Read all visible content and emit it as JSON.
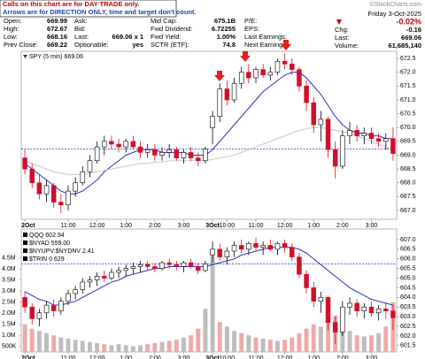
{
  "notice": [
    "Calls on this chart are for DAY TRADE only.",
    "Arrows are for DIRECTION ONLY, time and target don't count."
  ],
  "watermark": "©StockCharts.com",
  "header": {
    "columns": [
      [
        [
          "Open:",
          "669.99"
        ],
        [
          "High:",
          "672.67"
        ],
        [
          "Low:",
          "668.16"
        ],
        [
          "Prev Close:",
          "669.22"
        ]
      ],
      [
        [
          "Ask:"
        ],
        [
          "Bid:"
        ],
        [
          "Last:",
          "669.06 x 1"
        ],
        [
          "Optionable:",
          "yes"
        ]
      ],
      [
        [
          "Mid Cap:",
          "675.1B"
        ],
        [
          "Fwd Dividend:",
          "6.72255"
        ],
        [
          "Fwd Yield:",
          "1.00%"
        ],
        [
          "SCTR (ETF):",
          "74.8"
        ]
      ],
      [
        [
          "P/E:"
        ],
        [
          "EPS:"
        ],
        [
          "Last Earnings:"
        ],
        [
          "Next Earnings:"
        ]
      ]
    ],
    "date": "Friday 3-Oct-2025",
    "pct_change": "-0.02%",
    "right": [
      [
        "Chg:",
        "-0.16"
      ],
      [
        "Last:",
        "669.06"
      ],
      [
        "Volume:",
        "61,685,140"
      ]
    ]
  },
  "chart_data": [
    {
      "type": "candlestick",
      "legend": "SPY (5 min) 669.06",
      "x": [
        0,
        1,
        2,
        3,
        4,
        5,
        6,
        7,
        8,
        9,
        10,
        11,
        12,
        13,
        14,
        15,
        16,
        17,
        18,
        19,
        20,
        21,
        22,
        23,
        24,
        25,
        26,
        27,
        28,
        29,
        30,
        31,
        32,
        33,
        34,
        35,
        36,
        37,
        38,
        39,
        40,
        41,
        42,
        43,
        44,
        45,
        46,
        47,
        48,
        49,
        50,
        51
      ],
      "open": [
        668.9,
        668.5,
        668.0,
        667.6,
        667.9,
        667.3,
        667.2,
        667.7,
        668.0,
        668.4,
        668.8,
        669.3,
        669.5,
        669.4,
        669.3,
        669.5,
        669.3,
        669.1,
        669.2,
        669.0,
        669.1,
        669.2,
        668.9,
        669.1,
        668.9,
        668.8,
        669.99,
        670.4,
        671.4,
        671.0,
        671.6,
        672.0,
        671.8,
        672.1,
        671.9,
        672.0,
        672.4,
        672.3,
        672.1,
        671.5,
        670.9,
        670.1,
        670.3,
        669.2,
        668.6,
        669.7,
        669.9,
        669.7,
        669.8,
        669.6,
        669.5,
        669.6
      ],
      "high": [
        669.2,
        668.7,
        668.3,
        668.1,
        668.0,
        667.6,
        667.9,
        668.2,
        668.6,
        669.0,
        669.5,
        669.7,
        669.7,
        669.6,
        669.6,
        669.7,
        669.5,
        669.4,
        669.4,
        669.3,
        669.4,
        669.3,
        669.2,
        669.3,
        669.1,
        669.3,
        670.6,
        671.6,
        671.7,
        671.8,
        672.2,
        672.3,
        672.2,
        672.3,
        672.2,
        672.5,
        672.67,
        672.5,
        672.2,
        671.7,
        671.1,
        670.6,
        670.4,
        669.5,
        669.9,
        670.2,
        670.1,
        670.0,
        670.0,
        669.8,
        669.8,
        670.0
      ],
      "low": [
        668.3,
        667.8,
        667.4,
        667.3,
        667.1,
        666.9,
        667.0,
        667.5,
        667.9,
        668.2,
        668.7,
        669.0,
        669.2,
        669.1,
        669.1,
        669.2,
        668.9,
        668.9,
        668.8,
        668.8,
        668.9,
        668.8,
        668.7,
        668.8,
        668.6,
        668.7,
        669.4,
        670.2,
        670.8,
        670.9,
        671.4,
        671.6,
        671.6,
        671.8,
        671.7,
        671.9,
        672.1,
        671.9,
        671.3,
        670.6,
        669.8,
        669.5,
        668.9,
        668.16,
        668.5,
        669.4,
        669.5,
        669.4,
        669.4,
        669.3,
        669.2,
        668.8
      ],
      "close": [
        668.5,
        668.0,
        667.6,
        667.9,
        667.3,
        667.2,
        667.7,
        668.0,
        668.4,
        668.8,
        669.3,
        669.5,
        669.4,
        669.3,
        669.5,
        669.3,
        669.1,
        669.2,
        669.0,
        669.1,
        669.2,
        668.9,
        669.1,
        668.9,
        668.8,
        669.22,
        670.4,
        671.4,
        671.0,
        671.6,
        672.0,
        671.8,
        672.1,
        671.9,
        672.0,
        672.4,
        672.3,
        672.1,
        671.5,
        670.9,
        670.1,
        670.3,
        669.2,
        668.6,
        669.7,
        669.9,
        669.7,
        669.8,
        669.6,
        669.5,
        669.6,
        669.06
      ],
      "overlays": [
        {
          "color": "#2b2bd0",
          "values": [
            668.7,
            668.5,
            668.3,
            668.1,
            667.9,
            667.7,
            667.6,
            667.6,
            667.7,
            667.9,
            668.1,
            668.4,
            668.6,
            668.8,
            669.0,
            669.1,
            669.2,
            669.2,
            669.2,
            669.1,
            669.1,
            669.1,
            669.1,
            669.0,
            669.0,
            669.0,
            669.2,
            669.5,
            669.8,
            670.1,
            670.4,
            670.7,
            671.0,
            671.3,
            671.5,
            671.7,
            671.9,
            672.0,
            672.0,
            671.8,
            671.5,
            671.2,
            670.8,
            670.4,
            670.1,
            669.9,
            669.8,
            669.8,
            669.7,
            669.7,
            669.6,
            669.6
          ]
        },
        {
          "color": "#c8c8c8",
          "values": [
            668.8,
            668.7,
            668.6,
            668.5,
            668.4,
            668.35,
            668.3,
            668.3,
            668.3,
            668.35,
            668.4,
            668.45,
            668.5,
            668.55,
            668.6,
            668.65,
            668.7,
            668.7,
            668.75,
            668.75,
            668.8,
            668.8,
            668.8,
            668.8,
            668.8,
            668.8,
            668.85,
            668.9,
            668.95,
            669.0,
            669.1,
            669.2,
            669.3,
            669.4,
            669.5,
            669.6,
            669.7,
            669.8,
            669.9,
            669.95,
            670.0,
            670.0,
            669.95,
            669.9,
            669.85,
            669.8,
            669.7,
            669.6,
            669.5,
            669.4,
            669.3,
            669.2
          ]
        }
      ],
      "reference_line": 669.22,
      "xlim": [
        -0.5,
        51.5
      ],
      "xticks": [
        {
          "value": 0,
          "label": "2Oct"
        },
        {
          "value": 6,
          "label": "11:00"
        },
        {
          "value": 10,
          "label": "12:00"
        },
        {
          "value": 14,
          "label": "1:00"
        },
        {
          "value": 18,
          "label": "2:00"
        },
        {
          "value": 22,
          "label": "3:00"
        },
        {
          "value": 26,
          "label": "3Oct"
        },
        {
          "value": 28,
          "label": "10:00"
        },
        {
          "value": 32,
          "label": "11:00"
        },
        {
          "value": 36,
          "label": "12:00"
        },
        {
          "value": 40,
          "label": "1:00"
        },
        {
          "value": 44,
          "label": "2:00"
        },
        {
          "value": 48,
          "label": "3:00"
        }
      ],
      "ylim": [
        666.68,
        672.76
      ],
      "yticks": [
        {
          "value": 667,
          "label": "667.0"
        },
        667.5,
        {
          "value": 668,
          "label": "668.0"
        },
        668.5,
        {
          "value": 669,
          "label": "669.0"
        },
        669.5,
        {
          "value": 670,
          "label": "670.0"
        },
        670.5,
        {
          "value": 671,
          "label": "671.0"
        },
        671.5,
        {
          "value": 672,
          "label": "672.0"
        },
        672.5
      ]
    },
    {
      "type": "candlestick",
      "legend_lines": [
        "QQQ 602.94",
        "$NYAD 559.00",
        "$NYUPV:$NYDNV 2.41",
        "$TRIN 0.629"
      ],
      "x": [
        0,
        1,
        2,
        3,
        4,
        5,
        6,
        7,
        8,
        9,
        10,
        11,
        12,
        13,
        14,
        15,
        16,
        17,
        18,
        19,
        20,
        21,
        22,
        23,
        24,
        25,
        26,
        27,
        28,
        29,
        30,
        31,
        32,
        33,
        34,
        35,
        36,
        37,
        38,
        39,
        40,
        41,
        42,
        43,
        44,
        45,
        46,
        47,
        48,
        49,
        50,
        51
      ],
      "open": [
        604.0,
        603.5,
        602.9,
        603.2,
        603.6,
        603.3,
        603.8,
        604.2,
        604.4,
        604.8,
        604.9,
        605.1,
        605.0,
        605.3,
        605.4,
        605.5,
        605.6,
        605.7,
        605.6,
        605.5,
        605.8,
        605.7,
        605.6,
        605.8,
        605.6,
        605.4,
        606.2,
        606.5,
        606.1,
        606.4,
        606.7,
        606.5,
        606.8,
        606.6,
        606.7,
        606.5,
        606.8,
        606.6,
        606.1,
        605.2,
        604.5,
        603.8,
        604.0,
        602.7,
        602.2,
        603.5,
        603.7,
        603.3,
        603.5,
        603.2,
        603.4,
        603.3
      ],
      "high": [
        604.3,
        603.7,
        603.4,
        603.8,
        603.9,
        604.0,
        604.4,
        604.6,
        605.0,
        605.1,
        605.3,
        605.4,
        605.5,
        605.6,
        605.7,
        605.8,
        605.9,
        605.9,
        605.8,
        605.9,
        606.0,
        605.9,
        605.9,
        606.0,
        605.8,
        605.9,
        606.9,
        606.8,
        606.6,
        606.9,
        607.0,
        606.9,
        607.1,
        606.9,
        607.0,
        606.9,
        607.0,
        606.8,
        606.3,
        605.4,
        604.8,
        604.3,
        604.1,
        603.0,
        603.8,
        604.0,
        603.9,
        603.7,
        603.8,
        603.6,
        603.7,
        603.6
      ],
      "low": [
        603.2,
        602.6,
        602.5,
        602.9,
        603.0,
        603.1,
        603.6,
        603.9,
        604.2,
        604.5,
        604.6,
        604.8,
        604.9,
        605.0,
        605.1,
        605.2,
        605.3,
        605.4,
        605.3,
        605.4,
        605.5,
        605.4,
        605.3,
        605.5,
        605.2,
        605.3,
        605.8,
        605.9,
        605.7,
        606.1,
        606.3,
        606.2,
        606.4,
        606.2,
        606.4,
        606.2,
        606.3,
        605.9,
        605.0,
        604.2,
        603.5,
        603.2,
        602.3,
        601.6,
        602.0,
        603.1,
        603.0,
        602.9,
        603.0,
        602.8,
        602.9,
        602.3
      ],
      "close": [
        603.5,
        602.9,
        603.2,
        603.6,
        603.3,
        603.8,
        604.2,
        604.4,
        604.8,
        604.9,
        605.1,
        605.0,
        605.3,
        605.4,
        605.5,
        605.6,
        605.7,
        605.6,
        605.5,
        605.8,
        605.7,
        605.6,
        605.8,
        605.6,
        605.4,
        605.73,
        606.5,
        606.1,
        606.4,
        606.7,
        606.5,
        606.8,
        606.6,
        606.7,
        606.5,
        606.8,
        606.6,
        606.1,
        605.2,
        604.5,
        603.8,
        604.0,
        602.7,
        602.2,
        603.5,
        603.7,
        603.3,
        603.5,
        603.2,
        603.4,
        603.3,
        602.94
      ],
      "overlays": [
        {
          "color": "#2b2bd0",
          "values": [
            604.3,
            604.1,
            603.9,
            603.8,
            603.6,
            603.6,
            603.7,
            603.8,
            604.0,
            604.2,
            604.4,
            604.6,
            604.8,
            604.9,
            605.1,
            605.2,
            605.3,
            605.4,
            605.5,
            605.5,
            605.6,
            605.6,
            605.6,
            605.6,
            605.6,
            605.6,
            605.7,
            605.8,
            605.9,
            606.0,
            606.2,
            606.3,
            606.4,
            606.5,
            606.6,
            606.6,
            606.6,
            606.6,
            606.5,
            606.3,
            606.0,
            605.7,
            605.4,
            605.1,
            604.8,
            604.5,
            604.3,
            604.1,
            603.9,
            603.8,
            603.7,
            603.6
          ]
        }
      ],
      "reference_line": 605.73,
      "volume": {
        "values": [
          1500000,
          1300000,
          1200000,
          1100000,
          1000000,
          900000,
          850000,
          800000,
          750000,
          700000,
          650000,
          600000,
          550000,
          600000,
          550000,
          500000,
          550000,
          600000,
          650000,
          700000,
          750000,
          800000,
          900000,
          1000000,
          1300000,
          2200000,
          4600000,
          1600000,
          1400000,
          1200000,
          1100000,
          1000000,
          900000,
          850000,
          800000,
          750000,
          800000,
          900000,
          1100000,
          1300000,
          1500000,
          1400000,
          1700000,
          1900000,
          1500000,
          1200000,
          1000000,
          950000,
          1000000,
          1100000,
          1400000,
          2500000
        ],
        "ylim": [
          250000,
          5810000
        ],
        "yticks": [
          {
            "value": 500000,
            "label": "500K"
          },
          {
            "value": 1000000,
            "label": "1.0M"
          },
          {
            "value": 1500000,
            "label": "1.5M"
          },
          {
            "value": 2000000,
            "label": "2.0M"
          },
          {
            "value": 2500000,
            "label": "2.5M"
          },
          {
            "value": 3000000,
            "label": "3.0M"
          },
          {
            "value": 3500000,
            "label": "3.5M"
          },
          {
            "value": 4000000,
            "label": "4.0M"
          },
          {
            "value": 4500000,
            "label": "4.5M"
          }
        ]
      },
      "xlim": [
        -0.5,
        51.5
      ],
      "xticks": [
        {
          "value": 0,
          "label": "2Oct"
        },
        {
          "value": 6,
          "label": "11:00"
        },
        {
          "value": 10,
          "label": "12:00"
        },
        {
          "value": 14,
          "label": "1:00"
        },
        {
          "value": 18,
          "label": "2:00"
        },
        {
          "value": 22,
          "label": "3:00"
        },
        {
          "value": 26,
          "label": "3Oct"
        },
        {
          "value": 28,
          "label": "10:00"
        },
        {
          "value": 32,
          "label": "11:00"
        },
        {
          "value": 36,
          "label": "12:00"
        },
        {
          "value": 40,
          "label": "1:00"
        },
        {
          "value": 44,
          "label": "2:00"
        },
        {
          "value": 48,
          "label": "3:00"
        }
      ],
      "ylim": [
        601.17,
        607.55
      ],
      "yticks": [
        601.5,
        {
          "value": 602,
          "label": "602.0"
        },
        602.5,
        {
          "value": 603,
          "label": "603.0"
        },
        603.5,
        {
          "value": 604,
          "label": "604.0"
        },
        604.5,
        {
          "value": 605,
          "label": "605.0"
        },
        605.5,
        {
          "value": 606,
          "label": "606.0"
        },
        606.5,
        {
          "value": 607,
          "label": "607.0"
        }
      ]
    }
  ]
}
